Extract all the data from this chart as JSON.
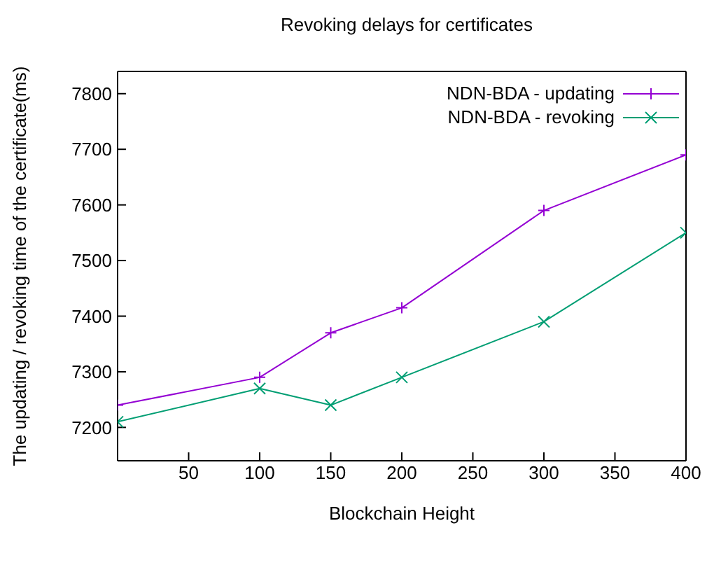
{
  "chart_data": {
    "type": "line",
    "title": "Revoking delays for certificates",
    "xlabel": "Blockchain Height",
    "ylabel": "The updating / revoking time of the certificate(ms)",
    "xlim": [
      0,
      400
    ],
    "xticks": [
      50,
      100,
      150,
      200,
      250,
      300,
      350,
      400
    ],
    "ylim": [
      7140,
      7840
    ],
    "yticks": [
      7200,
      7300,
      7400,
      7500,
      7600,
      7700,
      7800
    ],
    "x": [
      0,
      100,
      150,
      200,
      300,
      400
    ],
    "series": [
      {
        "name": "NDN-BDA - updating",
        "color": "#9400d3",
        "marker": "cross",
        "values": [
          7240,
          7290,
          7370,
          7415,
          7590,
          7690
        ]
      },
      {
        "name": "NDN-BDA - revoking",
        "color": "#009e73",
        "marker": "x",
        "values": [
          7210,
          7270,
          7240,
          7290,
          7390,
          7550
        ]
      }
    ],
    "legend": "top right",
    "grid": false,
    "line_style": "solid"
  }
}
